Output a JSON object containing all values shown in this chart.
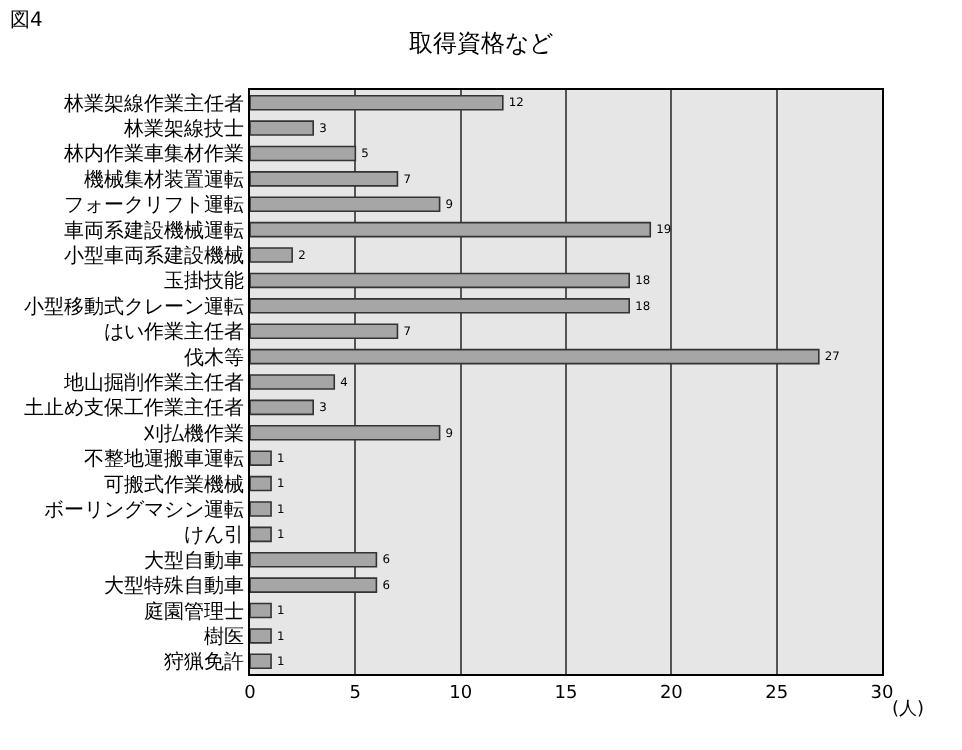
{
  "chart_data": {
    "type": "bar",
    "orientation": "horizontal",
    "title": "取得資格など",
    "xlabel": "(人)",
    "annotations": [
      "図4"
    ],
    "categories": [
      "林業架線作業主任者",
      "林業架線技士",
      "林内作業車集材作業",
      "機械集材装置運転",
      "フォークリフト運転",
      "車両系建設機械運転",
      "小型車両系建設機械",
      "玉掛技能",
      "小型移動式クレーン運転",
      "はい作業主任者",
      "伐木等",
      "地山掘削作業主任者",
      "土止め支保工作業主任者",
      "刈払機作業",
      "不整地運搬車運転",
      "可搬式作業機械",
      "ボーリングマシン運転",
      "けん引",
      "大型自動車",
      "大型特殊自動車",
      "庭園管理士",
      "樹医",
      "狩猟免許"
    ],
    "values": [
      12,
      3,
      5,
      7,
      9,
      19,
      2,
      18,
      18,
      7,
      27,
      4,
      3,
      9,
      1,
      1,
      1,
      1,
      6,
      6,
      1,
      1,
      1
    ],
    "color": "#a6a6a6",
    "data_labels": true,
    "xlim": [
      0,
      30
    ],
    "xticks": [
      0,
      5,
      10,
      15,
      20,
      25,
      30
    ],
    "grid": "x",
    "legend": false
  }
}
